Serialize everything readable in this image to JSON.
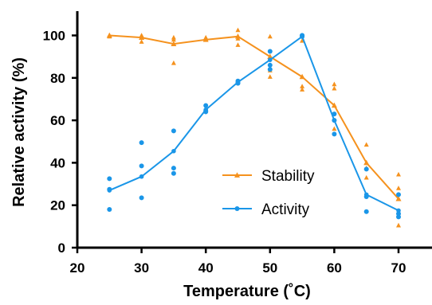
{
  "chart_data": {
    "type": "line",
    "xlabel": "Temperature (˚C)",
    "ylabel": "Relative activity (%)",
    "xlim": [
      20,
      75
    ],
    "ylim": [
      0,
      110
    ],
    "xticks": [
      20,
      30,
      40,
      50,
      60,
      70
    ],
    "yticks": [
      0,
      20,
      40,
      60,
      80,
      100
    ],
    "grid": false,
    "legend_position": "center-right",
    "series": [
      {
        "name": "Stability",
        "color": "#F5921E",
        "marker": "triangle",
        "x": [
          25,
          30,
          35,
          40,
          45,
          50,
          55,
          60,
          65,
          70
        ],
        "mean": [
          100,
          99,
          96,
          98,
          99.5,
          90,
          80.5,
          67,
          40,
          23
        ],
        "replicates": [
          [
            100,
            100,
            99.5
          ],
          [
            100,
            99,
            97
          ],
          [
            99,
            98,
            87
          ],
          [
            99,
            98.5,
            98
          ],
          [
            102.5,
            98.5,
            95.5
          ],
          [
            99.5,
            83.5,
            80.5
          ],
          [
            97.5,
            76,
            74.5
          ],
          [
            77,
            75,
            56
          ],
          [
            48.5,
            37.5,
            33
          ],
          [
            34.5,
            28,
            10.5
          ]
        ]
      },
      {
        "name": "Activity",
        "color": "#1A96E8",
        "marker": "circle",
        "x": [
          25,
          30,
          35,
          40,
          45,
          50,
          55,
          60,
          65,
          70
        ],
        "mean": [
          27,
          33.5,
          45.5,
          65,
          78,
          88.5,
          99.5,
          60,
          25,
          17.5
        ],
        "replicates": [
          [
            32.5,
            27.5,
            18
          ],
          [
            49.5,
            38.5,
            23.5
          ],
          [
            55,
            37.5,
            35
          ],
          [
            67,
            64.5,
            64
          ],
          [
            78.5,
            77.5,
            77.5
          ],
          [
            92.5,
            86,
            84
          ],
          [
            100,
            100,
            99.5
          ],
          [
            63,
            60,
            53.5
          ],
          [
            37,
            24,
            17
          ],
          [
            25,
            16,
            14.5
          ]
        ]
      }
    ]
  }
}
